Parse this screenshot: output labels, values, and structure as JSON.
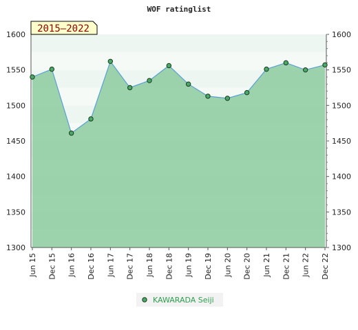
{
  "chart_data": {
    "type": "line",
    "title": "WOF ratinglist",
    "period_label": "2015–2022",
    "categories": [
      "Jun 15",
      "Dec 15",
      "Jun 16",
      "Dec 16",
      "Jun 17",
      "Dec 17",
      "Jun 18",
      "Dec 18",
      "Jun 19",
      "Dec 19",
      "Jun 20",
      "Dec 20",
      "Jun 21",
      "Dec 21",
      "Jun 22",
      "Dec 22"
    ],
    "series": [
      {
        "name": "KAWARADA Seiji",
        "values": [
          1540,
          1551,
          1461,
          1481,
          1562,
          1525,
          1535,
          1556,
          1530,
          1513,
          1510,
          1518,
          1551,
          1560,
          1550,
          1557
        ]
      }
    ],
    "ylim": [
      1300,
      1600
    ],
    "yticks": [
      1300,
      1350,
      1400,
      1450,
      1500,
      1550,
      1600
    ],
    "legend_position": "bottom-center",
    "colors": {
      "line": "#5a9fd4",
      "fill": "#8ccba0",
      "marker": "#4aa86a",
      "legend_text": "#2e9e50",
      "badge_bg": "#ffffcc",
      "badge_text": "#8b0000"
    }
  }
}
